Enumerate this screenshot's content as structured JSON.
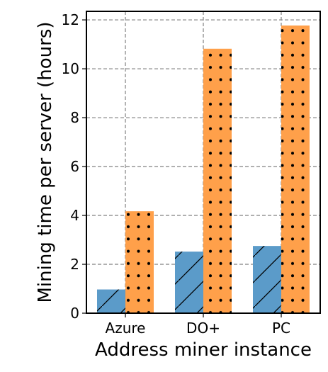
{
  "chart_data": {
    "type": "bar",
    "title": "",
    "xlabel": "Address miner instance",
    "ylabel": "Mining time per server (hours)",
    "categories": [
      "Azure",
      "DO+",
      "PC"
    ],
    "series": [
      {
        "values": [
          0.97,
          2.52,
          2.75
        ],
        "color": "#5b9bc9",
        "hatch": "diagonal"
      },
      {
        "values": [
          4.17,
          10.82,
          11.77
        ],
        "color": "#ffa04a",
        "hatch": "dots"
      }
    ],
    "ylim": [
      0,
      12.35
    ],
    "yticks": [
      0,
      2,
      4,
      6,
      8,
      10,
      12
    ],
    "grid": true
  }
}
